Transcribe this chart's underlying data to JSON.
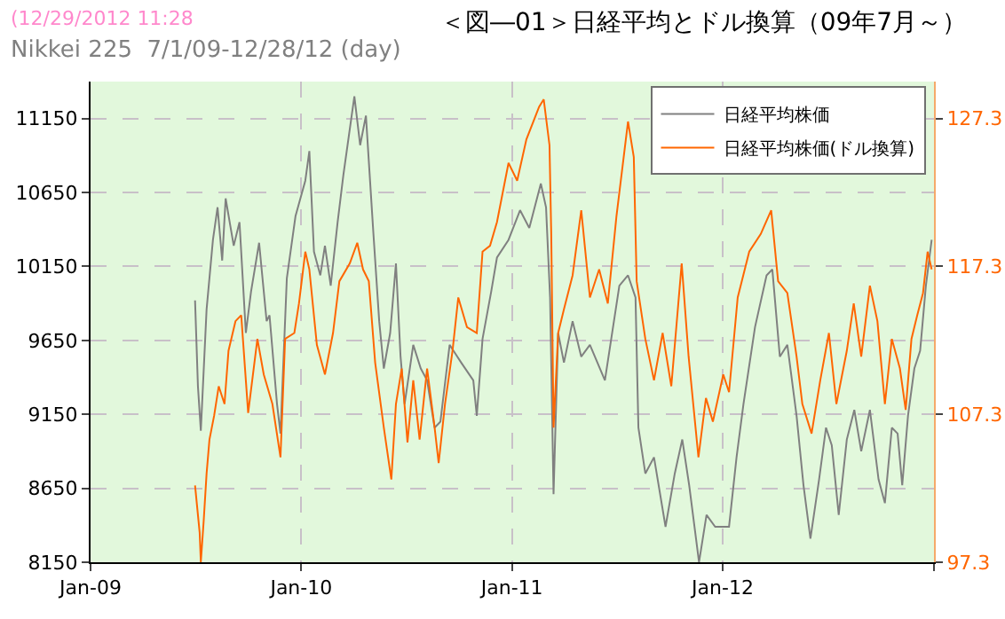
{
  "chart_data": {
    "type": "line",
    "title": "＜図―01＞日経平均とドル換算（09年7月～）",
    "subtitle": "Nikkei 225  7/1/09-12/28/12 (day)",
    "annotations": [
      "(12/29/2012 11:28"
    ],
    "xlim": [
      "2009-01-01",
      "2013-01-01"
    ],
    "xticks": [
      {
        "value": "2009-01-01",
        "label": "Jan-09"
      },
      {
        "value": "2010-01-01",
        "label": "Jan-10"
      },
      {
        "value": "2011-01-01",
        "label": "Jan-11"
      },
      {
        "value": "2012-01-01",
        "label": "Jan-12"
      },
      {
        "value": "2013-01-01",
        "label": null
      }
    ],
    "ylim": [
      8150,
      11400
    ],
    "yticks": [
      8150,
      8650,
      9150,
      9650,
      10150,
      10650,
      11150
    ],
    "y2lim": [
      97.3,
      129.8
    ],
    "y2ticks": [
      97.3,
      107.3,
      117.3,
      127.3
    ],
    "grid": true,
    "legend": "top right",
    "line_style": "solid",
    "marker": "none",
    "series": [
      {
        "name": "日経平均株価",
        "color": "#808080",
        "x": [
          "2009-07-01",
          "2009-07-06",
          "2009-07-11",
          "2009-07-21",
          "2009-08-01",
          "2009-08-09",
          "2009-08-17",
          "2009-08-23",
          "2009-09-06",
          "2009-09-16",
          "2009-09-27",
          "2009-10-06",
          "2009-10-20",
          "2009-11-02",
          "2009-11-07",
          "2009-11-20",
          "2009-11-26",
          "2009-12-07",
          "2009-12-22",
          "2010-01-08",
          "2010-01-15",
          "2010-01-23",
          "2010-02-03",
          "2010-02-11",
          "2010-02-21",
          "2010-03-05",
          "2010-03-15",
          "2010-04-03",
          "2010-04-13",
          "2010-04-23",
          "2010-05-06",
          "2010-05-16",
          "2010-05-24",
          "2010-06-04",
          "2010-06-14",
          "2010-06-22",
          "2010-06-29",
          "2010-07-14",
          "2010-07-27",
          "2010-08-07",
          "2010-08-20",
          "2010-08-30",
          "2010-09-15",
          "2010-10-05",
          "2010-10-26",
          "2010-11-01",
          "2010-11-11",
          "2010-11-26",
          "2010-12-06",
          "2010-12-26",
          "2011-01-15",
          "2011-01-31",
          "2011-02-20",
          "2011-03-01",
          "2011-03-08",
          "2011-03-14",
          "2011-03-22",
          "2011-04-01",
          "2011-04-16",
          "2011-05-01",
          "2011-05-16",
          "2011-06-11",
          "2011-07-06",
          "2011-07-21",
          "2011-08-03",
          "2011-08-08",
          "2011-08-20",
          "2011-09-04",
          "2011-09-24",
          "2011-10-10",
          "2011-10-23",
          "2011-11-04",
          "2011-11-21",
          "2011-12-04",
          "2011-12-19",
          "2012-01-12",
          "2012-01-25",
          "2012-02-06",
          "2012-02-26",
          "2012-03-17",
          "2012-03-27",
          "2012-04-09",
          "2012-04-22",
          "2012-05-08",
          "2012-05-20",
          "2012-06-01",
          "2012-06-16",
          "2012-06-28",
          "2012-07-08",
          "2012-07-20",
          "2012-08-03",
          "2012-08-16",
          "2012-08-28",
          "2012-09-12",
          "2012-09-27",
          "2012-10-08",
          "2012-10-20",
          "2012-10-30",
          "2012-11-07",
          "2012-11-17",
          "2012-11-28",
          "2012-12-08",
          "2012-12-18",
          "2012-12-28"
        ],
        "values": [
          9920,
          9340,
          9040,
          9860,
          10330,
          10550,
          10190,
          10610,
          10290,
          10450,
          9700,
          9980,
          10310,
          9780,
          9820,
          9220,
          9020,
          10070,
          10490,
          10730,
          10930,
          10250,
          10090,
          10290,
          10020,
          10450,
          10770,
          11300,
          10970,
          11170,
          10370,
          9780,
          9460,
          9700,
          10170,
          9540,
          9220,
          9620,
          9460,
          9380,
          9060,
          9100,
          9620,
          9500,
          9380,
          9140,
          9660,
          9980,
          10210,
          10330,
          10530,
          10410,
          10710,
          10550,
          9940,
          8610,
          9700,
          9500,
          9780,
          9540,
          9620,
          9380,
          10020,
          10090,
          9940,
          9060,
          8750,
          8860,
          8390,
          8750,
          8980,
          8670,
          8150,
          8470,
          8390,
          8390,
          8860,
          9220,
          9740,
          10090,
          10130,
          9540,
          9620,
          9140,
          8670,
          8310,
          8710,
          9060,
          8940,
          8470,
          8980,
          9180,
          8900,
          9180,
          8710,
          8550,
          9060,
          9020,
          8670,
          9140,
          9460,
          9580,
          10020,
          10330
        ]
      },
      {
        "name": "日経平均株価(ドル換算)",
        "color": "#ff6600",
        "axis": "y2",
        "x": [
          "2009-07-01",
          "2009-07-09",
          "2009-07-11",
          "2009-07-16",
          "2009-07-21",
          "2009-07-26",
          "2009-08-03",
          "2009-08-11",
          "2009-08-21",
          "2009-08-28",
          "2009-09-09",
          "2009-09-19",
          "2009-10-01",
          "2009-10-17",
          "2009-10-28",
          "2009-11-12",
          "2009-11-26",
          "2009-12-04",
          "2009-12-20",
          "2009-12-28",
          "2010-01-08",
          "2010-01-15",
          "2010-01-28",
          "2010-02-11",
          "2010-02-25",
          "2010-03-08",
          "2010-03-26",
          "2010-04-08",
          "2010-04-18",
          "2010-04-28",
          "2010-05-09",
          "2010-05-24",
          "2010-06-06",
          "2010-06-14",
          "2010-06-24",
          "2010-07-04",
          "2010-07-14",
          "2010-07-25",
          "2010-08-07",
          "2010-08-20",
          "2010-08-27",
          "2010-09-07",
          "2010-09-20",
          "2010-09-30",
          "2010-10-15",
          "2010-11-01",
          "2010-11-11",
          "2010-11-24",
          "2010-12-06",
          "2010-12-26",
          "2011-01-10",
          "2011-01-26",
          "2011-02-07",
          "2011-02-17",
          "2011-02-25",
          "2011-03-07",
          "2011-03-10",
          "2011-03-14",
          "2011-03-22",
          "2011-04-01",
          "2011-04-16",
          "2011-05-01",
          "2011-05-16",
          "2011-06-01",
          "2011-06-16",
          "2011-07-01",
          "2011-07-11",
          "2011-07-21",
          "2011-07-31",
          "2011-08-05",
          "2011-08-20",
          "2011-09-04",
          "2011-09-19",
          "2011-10-04",
          "2011-10-22",
          "2011-11-03",
          "2011-11-20",
          "2011-12-03",
          "2011-12-15",
          "2012-01-02",
          "2012-01-12",
          "2012-01-27",
          "2012-02-16",
          "2012-03-07",
          "2012-03-25",
          "2012-04-06",
          "2012-04-22",
          "2012-05-08",
          "2012-05-18",
          "2012-06-03",
          "2012-06-18",
          "2012-07-03",
          "2012-07-16",
          "2012-08-03",
          "2012-08-15",
          "2012-08-28",
          "2012-09-12",
          "2012-09-25",
          "2012-10-08",
          "2012-10-20",
          "2012-11-03",
          "2012-11-13",
          "2012-11-23",
          "2012-12-03",
          "2012-12-13",
          "2012-12-21",
          "2012-12-28"
        ],
        "values": [
          102.5,
          99.3,
          97.3,
          100.1,
          103.3,
          105.6,
          107.2,
          109.2,
          108.0,
          111.6,
          113.6,
          114.0,
          107.4,
          112.4,
          110.0,
          108.0,
          104.4,
          112.4,
          112.8,
          114.8,
          118.3,
          117.1,
          112.0,
          110.0,
          112.8,
          116.3,
          117.5,
          118.9,
          117.1,
          116.3,
          110.8,
          106.4,
          102.9,
          108.0,
          110.4,
          105.4,
          109.6,
          105.6,
          110.4,
          106.4,
          104.0,
          108.0,
          111.6,
          115.2,
          113.2,
          112.8,
          118.3,
          118.7,
          120.3,
          124.3,
          123.1,
          125.9,
          127.1,
          128.1,
          128.6,
          125.5,
          119.5,
          106.4,
          112.8,
          114.4,
          116.7,
          121.1,
          115.2,
          117.1,
          114.8,
          120.7,
          123.9,
          127.1,
          124.7,
          116.3,
          112.4,
          109.6,
          112.8,
          109.2,
          117.5,
          111.2,
          104.4,
          108.4,
          106.8,
          110.0,
          108.8,
          115.2,
          118.3,
          119.5,
          121.1,
          116.3,
          115.5,
          111.2,
          108.0,
          106.0,
          109.6,
          112.8,
          108.0,
          111.6,
          114.8,
          111.2,
          116.0,
          113.6,
          108.0,
          112.4,
          110.4,
          107.6,
          112.4,
          114.0,
          115.5,
          118.3,
          117.1
        ]
      }
    ]
  }
}
